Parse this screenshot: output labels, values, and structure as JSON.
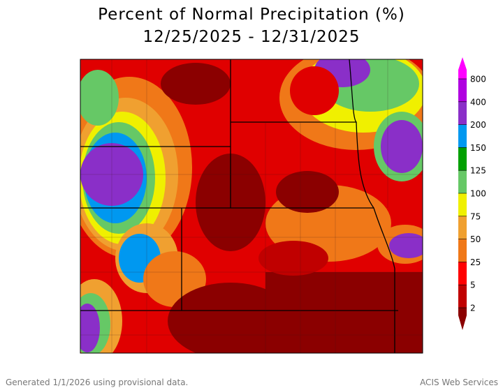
{
  "header": {
    "title": "Percent of Normal Precipitation (%)",
    "subtitle": "12/25/2025 - 12/31/2025"
  },
  "legend": {
    "ticks": [
      800,
      400,
      200,
      150,
      125,
      100,
      75,
      50,
      25,
      5,
      2
    ],
    "colors": [
      "#ff00ff",
      "#b000e0",
      "#8a2fc8",
      "#0098f0",
      "#00a000",
      "#66c866",
      "#f0f000",
      "#f0a030",
      "#f07818",
      "#ff0000",
      "#c00000",
      "#8b0000"
    ]
  },
  "footer": {
    "left": "Generated 1/1/2026 using provisional data.",
    "right": "ACIS Web Services"
  }
}
